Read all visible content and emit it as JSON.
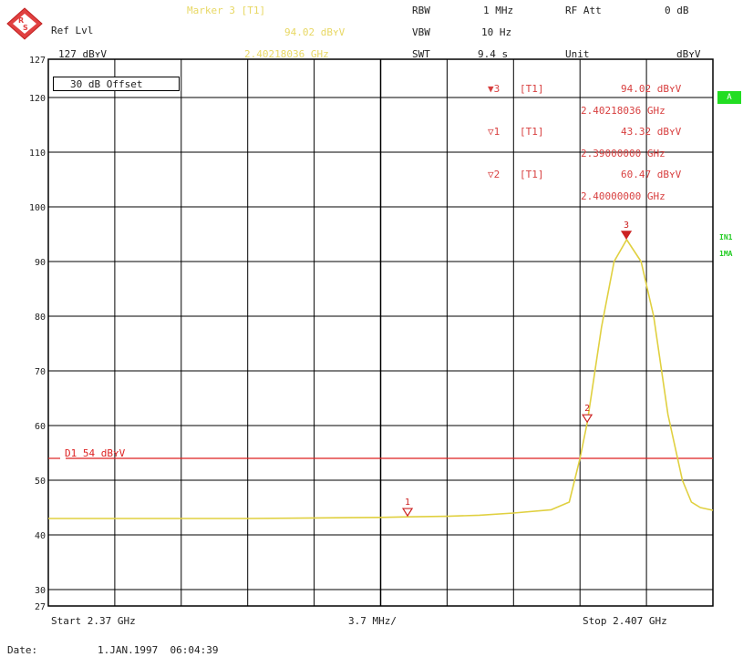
{
  "header": {
    "ref_lvl_label": "Ref Lvl",
    "ref_lvl_value": "127 dBʏV",
    "marker_title": "Marker 3 [T1]",
    "marker_level": "94.02 dBʏV",
    "marker_freq": "2.40218036 GHz",
    "rbw_label": "RBW",
    "rbw_value": "1 MHz",
    "vbw_label": "VBW",
    "vbw_value": "10 Hz",
    "swt_label": "SWT",
    "swt_value": "9.4 s",
    "rf_att_label": "RF Att",
    "rf_att_value": "0 dB",
    "unit_label": "Unit",
    "unit_value": "dBʏV"
  },
  "offset_label": "30 dB Offset",
  "markers_table": [
    {
      "symbol": "▼3",
      "trace": "[T1]",
      "level": "94.02 dBʏV",
      "freq": "2.40218036 GHz"
    },
    {
      "symbol": "▽1",
      "trace": "[T1]",
      "level": "43.32 dBʏV",
      "freq": "2.39000000 GHz"
    },
    {
      "symbol": "▽2",
      "trace": "[T1]",
      "level": "60.47 dBʏV",
      "freq": "2.40000000 GHz"
    }
  ],
  "side_labels": {
    "a": "A",
    "in1": "IN1",
    "ma": "1MA"
  },
  "footer": {
    "start": "Start 2.37 GHz",
    "span": "3.7 MHz/",
    "stop": "Stop 2.407 GHz",
    "date_label": "Date:",
    "date_value": "1.JAN.1997  06:04:39"
  },
  "colors": {
    "trace": "#e0d040",
    "display_line": "#dd2222",
    "marker": "#cc2222",
    "grid": "#000000"
  },
  "chart_data": {
    "type": "line",
    "x_range_ghz": [
      2.37,
      2.407
    ],
    "y_range_dbuv": [
      27,
      127
    ],
    "y_ticks": [
      127,
      120,
      110,
      100,
      90,
      80,
      70,
      60,
      50,
      40,
      30,
      27
    ],
    "grid": true,
    "display_line": {
      "label": "D1 54 dBʏV",
      "value": 54
    },
    "series": [
      {
        "x": [
          2.37,
          2.3737,
          2.3774,
          2.3811,
          2.3848,
          2.3885,
          2.39,
          2.3922,
          2.394,
          2.3959,
          2.398,
          2.399,
          2.3996,
          2.4,
          2.4008,
          2.4015,
          2.4022,
          2.403,
          2.4037,
          2.4045,
          2.4053,
          2.4058,
          2.4063,
          2.407
        ],
        "y": [
          43.0,
          43.0,
          43.0,
          43.0,
          43.1,
          43.2,
          43.3,
          43.4,
          43.6,
          44.0,
          44.6,
          46.0,
          54.0,
          60.5,
          78.0,
          90.0,
          94.0,
          90.0,
          80.0,
          62.0,
          50.0,
          46.0,
          45.0,
          44.5
        ]
      }
    ],
    "markers": [
      {
        "id": "1",
        "x": 2.39,
        "y": 43.32,
        "filled": false
      },
      {
        "id": "2",
        "x": 2.4,
        "y": 60.47,
        "filled": false
      },
      {
        "id": "3",
        "x": 2.40218036,
        "y": 94.02,
        "filled": true
      }
    ]
  }
}
